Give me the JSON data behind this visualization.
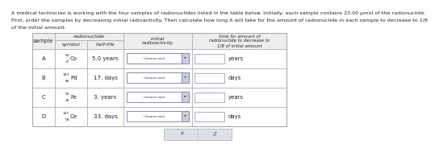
{
  "title_line1": "A medical technician is working with the four samples of radionuclides listed in the table below. Initially, each sample contains 23.00 μmol of the radionuclide.",
  "title_line2": "First, order the samples by decreasing initial radioactivity. Then calculate how long it will take for the amount of radionuclide in each sample to decrease to 1/8",
  "title_line3": "of the initial amount.",
  "samples": [
    "A",
    "B",
    "C",
    "D"
  ],
  "superscripts": [
    "60",
    "103",
    "55",
    "141"
  ],
  "subscripts": [
    "27",
    "46",
    "26",
    "58"
  ],
  "elements": [
    "Co",
    "Pd",
    "Fe",
    "Ce"
  ],
  "half_lives": [
    "5.0 years",
    "17. days",
    "3. years",
    "33. days"
  ],
  "units": [
    "years",
    "days",
    "years",
    "days"
  ],
  "bg_color": "#ffffff",
  "table_border_color": "#aaaaaa",
  "header_bg": "#eeeeee",
  "cell_bg": "#ffffff",
  "text_color": "#222222",
  "dropdown_bg": "#ffffff",
  "dropdown_border": "#8888bb",
  "input_box_border": "#aaaacc",
  "button_bg": "#dde0ea",
  "font_size": 5.0,
  "title_font_size": 4.6
}
